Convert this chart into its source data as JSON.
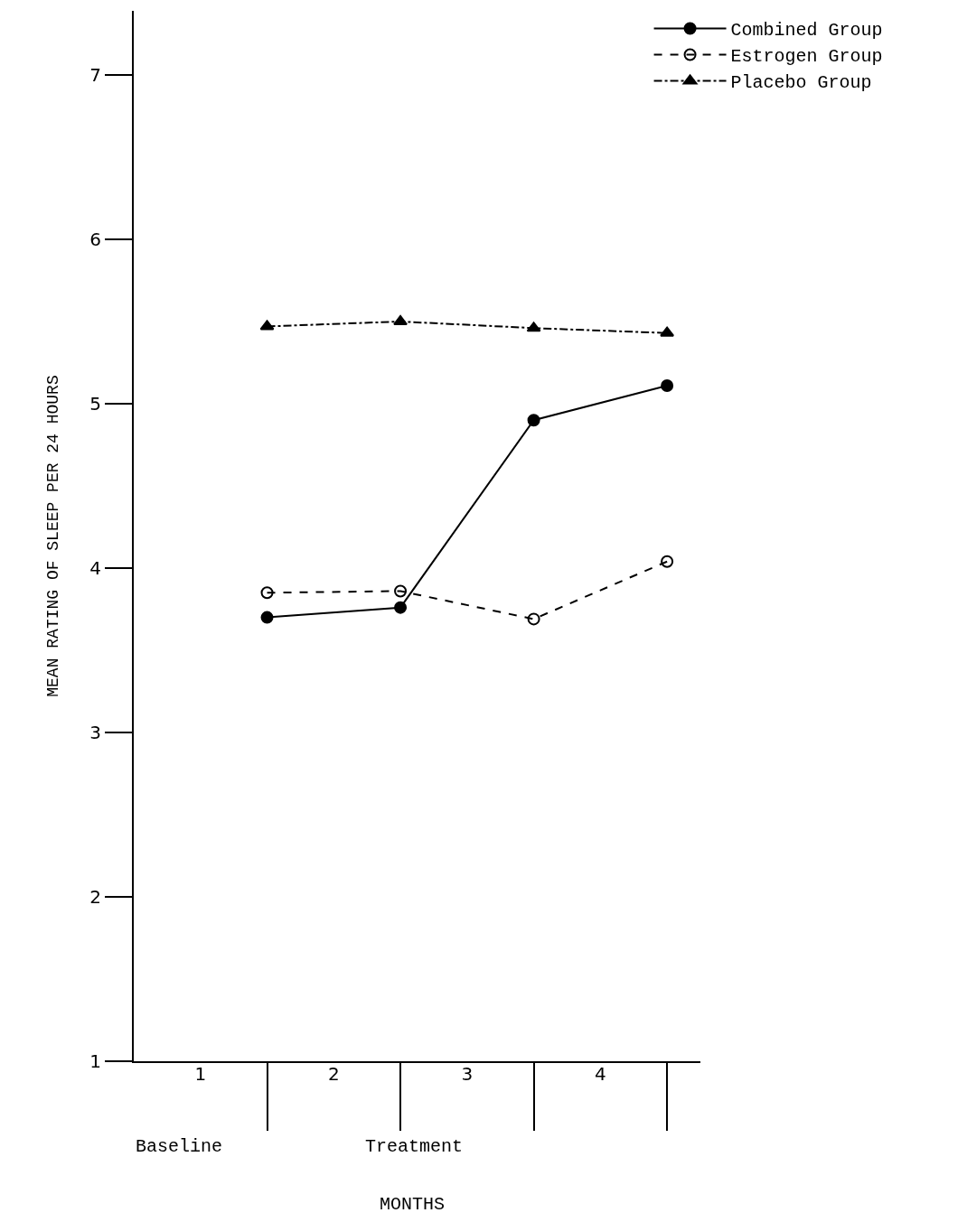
{
  "chart_data": {
    "type": "line",
    "ylabel": "MEAN RATING OF SLEEP PER 24 HOURS",
    "x": [
      1.5,
      2.5,
      3.5,
      4.5
    ],
    "series": [
      {
        "name": "Combined Group",
        "color": "#000000",
        "values": [
          3.7,
          3.76,
          4.9,
          5.11
        ],
        "marker": "circle",
        "line_style": "solid"
      },
      {
        "name": "Estrogen Group",
        "color": "#000000",
        "values": [
          3.85,
          3.86,
          3.69,
          4.04
        ],
        "marker": "circle-open",
        "line_style": "dashed"
      },
      {
        "name": "Placebo Group",
        "color": "#000000",
        "values": [
          5.47,
          5.5,
          5.46,
          5.43
        ],
        "marker": "triangle",
        "line_style": "dashdot"
      }
    ],
    "xlim": [
      0.5,
      4.75
    ],
    "xticks": [
      1,
      2,
      3,
      4
    ],
    "ylim": [
      1,
      7.39
    ],
    "yticks": [
      1,
      2,
      3,
      4,
      5,
      6,
      7
    ],
    "grid": false,
    "legend": "top right",
    "annotations": [
      "Baseline",
      "Treatment",
      "MONTHS"
    ]
  }
}
